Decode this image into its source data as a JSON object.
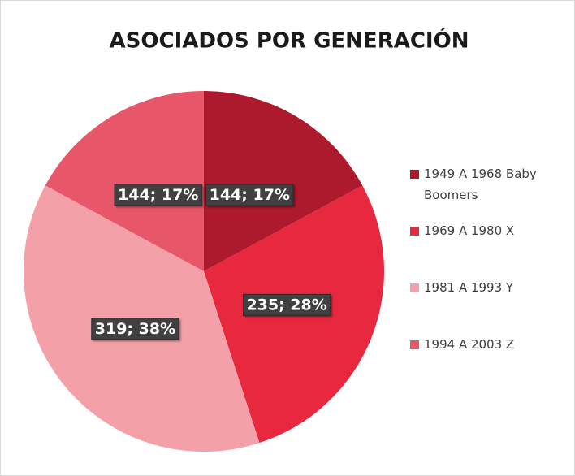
{
  "chart_data": {
    "type": "pie",
    "title": "ASOCIADOS POR GENERACIÓN",
    "categories": [
      "1949 A 1968 Baby Boomers",
      "1969 A 1980 X",
      "1981 A 1993 Y",
      "1994 A 2003 Z"
    ],
    "values": [
      144,
      235,
      319,
      144
    ],
    "value_labels": [
      "144; 17%",
      "235; 28%",
      "319; 38%",
      "144; 17%"
    ],
    "colors": [
      "#ad1a2e",
      "#e8283f",
      "#f4a0a9",
      "#e8566a"
    ],
    "legend": "right"
  }
}
